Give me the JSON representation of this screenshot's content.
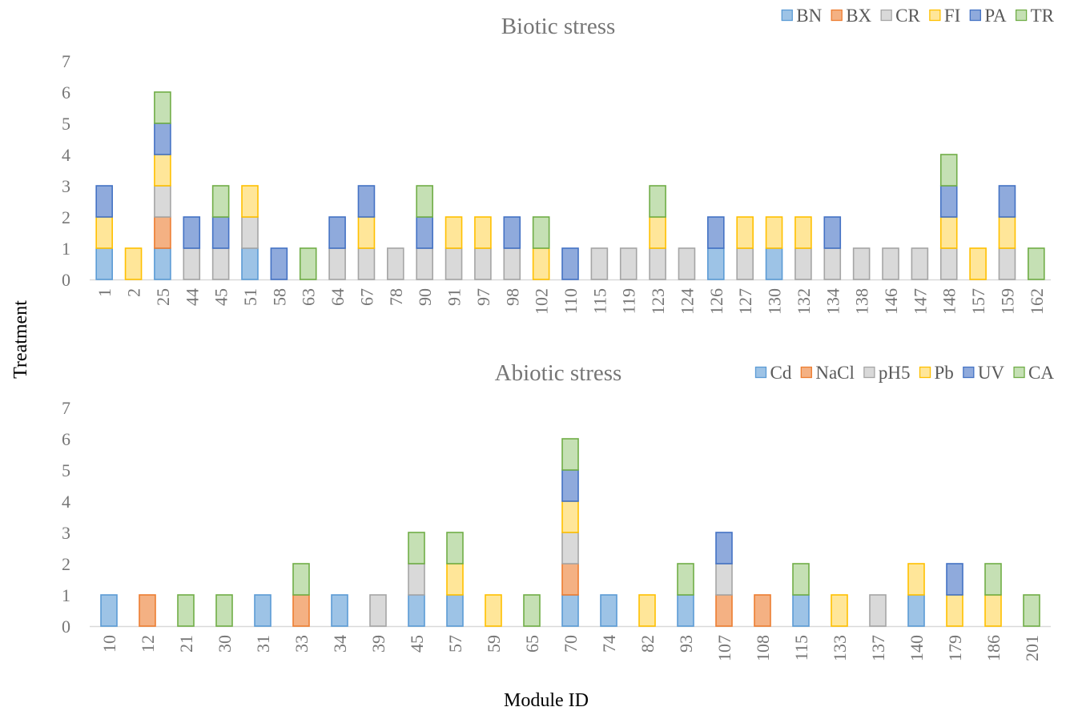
{
  "ylabel": "Treatment",
  "xlabel": "Module ID",
  "chart_data": [
    {
      "type": "bar",
      "stacked": true,
      "title": "Biotic stress",
      "xlabel": "Module ID",
      "ylabel": "Treatment",
      "ylim": [
        0,
        7
      ],
      "yticks": [
        0,
        1,
        2,
        3,
        4,
        5,
        6,
        7
      ],
      "grid": false,
      "legend_position": "top-right",
      "categories": [
        "1",
        "2",
        "25",
        "44",
        "45",
        "51",
        "58",
        "63",
        "64",
        "67",
        "78",
        "90",
        "91",
        "97",
        "98",
        "102",
        "110",
        "115",
        "119",
        "123",
        "124",
        "126",
        "127",
        "130",
        "132",
        "134",
        "138",
        "146",
        "147",
        "148",
        "157",
        "159",
        "162"
      ],
      "series": [
        {
          "name": "BN",
          "color": "#9DC3E6",
          "edge": "#5B9BD5",
          "values": [
            1,
            0,
            1,
            0,
            0,
            1,
            0,
            0,
            0,
            0,
            0,
            0,
            0,
            0,
            0,
            0,
            0,
            0,
            0,
            0,
            0,
            1,
            0,
            1,
            0,
            0,
            0,
            0,
            0,
            0,
            0,
            0,
            0
          ]
        },
        {
          "name": "BX",
          "color": "#F4B183",
          "edge": "#ED7D31",
          "values": [
            0,
            0,
            1,
            0,
            0,
            0,
            0,
            0,
            0,
            0,
            0,
            0,
            0,
            0,
            0,
            0,
            0,
            0,
            0,
            0,
            0,
            0,
            0,
            0,
            0,
            0,
            0,
            0,
            0,
            0,
            0,
            0,
            0
          ]
        },
        {
          "name": "CR",
          "color": "#D9D9D9",
          "edge": "#A5A5A5",
          "values": [
            0,
            0,
            1,
            1,
            1,
            1,
            0,
            0,
            1,
            1,
            1,
            1,
            1,
            1,
            1,
            0,
            0,
            1,
            1,
            1,
            1,
            0,
            1,
            0,
            1,
            1,
            1,
            1,
            1,
            1,
            0,
            1,
            0
          ]
        },
        {
          "name": "FI",
          "color": "#FFE699",
          "edge": "#FFC000",
          "values": [
            1,
            1,
            1,
            0,
            0,
            1,
            0,
            0,
            0,
            1,
            0,
            0,
            1,
            1,
            0,
            1,
            0,
            0,
            0,
            1,
            0,
            0,
            1,
            1,
            1,
            0,
            0,
            0,
            0,
            1,
            1,
            1,
            0
          ]
        },
        {
          "name": "PA",
          "color": "#8FAADC",
          "edge": "#4472C4",
          "values": [
            1,
            0,
            1,
            1,
            1,
            0,
            1,
            0,
            1,
            1,
            0,
            1,
            0,
            0,
            1,
            0,
            1,
            0,
            0,
            0,
            0,
            1,
            0,
            0,
            0,
            1,
            0,
            0,
            0,
            1,
            0,
            1,
            0
          ]
        },
        {
          "name": "TR",
          "color": "#C5E0B4",
          "edge": "#70AD47",
          "values": [
            0,
            0,
            1,
            0,
            1,
            0,
            0,
            1,
            0,
            0,
            0,
            1,
            0,
            0,
            0,
            1,
            0,
            0,
            0,
            1,
            0,
            0,
            0,
            0,
            0,
            0,
            0,
            0,
            0,
            1,
            0,
            0,
            1
          ]
        }
      ]
    },
    {
      "type": "bar",
      "stacked": true,
      "title": "Abiotic stress",
      "xlabel": "Module ID",
      "ylabel": "Treatment",
      "ylim": [
        0,
        7
      ],
      "yticks": [
        0,
        1,
        2,
        3,
        4,
        5,
        6,
        7
      ],
      "grid": false,
      "legend_position": "top-right",
      "categories": [
        "10",
        "12",
        "21",
        "30",
        "31",
        "33",
        "34",
        "39",
        "45",
        "57",
        "59",
        "65",
        "70",
        "74",
        "82",
        "93",
        "107",
        "108",
        "115",
        "133",
        "137",
        "140",
        "179",
        "186",
        "201"
      ],
      "series": [
        {
          "name": "Cd",
          "color": "#9DC3E6",
          "edge": "#5B9BD5",
          "values": [
            1,
            0,
            0,
            0,
            1,
            0,
            1,
            0,
            1,
            1,
            0,
            0,
            1,
            1,
            0,
            1,
            0,
            0,
            1,
            0,
            0,
            1,
            0,
            0,
            0
          ]
        },
        {
          "name": "NaCl",
          "color": "#F4B183",
          "edge": "#ED7D31",
          "values": [
            0,
            1,
            0,
            0,
            0,
            1,
            0,
            0,
            0,
            0,
            0,
            0,
            1,
            0,
            0,
            0,
            1,
            1,
            0,
            0,
            0,
            0,
            0,
            0,
            0
          ]
        },
        {
          "name": "pH5",
          "color": "#D9D9D9",
          "edge": "#A5A5A5",
          "values": [
            0,
            0,
            0,
            0,
            0,
            0,
            0,
            1,
            1,
            0,
            0,
            0,
            1,
            0,
            0,
            0,
            1,
            0,
            0,
            0,
            1,
            0,
            0,
            0,
            0
          ]
        },
        {
          "name": "Pb",
          "color": "#FFE699",
          "edge": "#FFC000",
          "values": [
            0,
            0,
            0,
            0,
            0,
            0,
            0,
            0,
            0,
            1,
            1,
            0,
            1,
            0,
            1,
            0,
            0,
            0,
            0,
            1,
            0,
            1,
            1,
            1,
            0
          ]
        },
        {
          "name": "UV",
          "color": "#8FAADC",
          "edge": "#4472C4",
          "values": [
            0,
            0,
            0,
            0,
            0,
            0,
            0,
            0,
            0,
            0,
            0,
            0,
            1,
            0,
            0,
            0,
            1,
            0,
            0,
            0,
            0,
            0,
            1,
            0,
            0
          ]
        },
        {
          "name": "CA",
          "color": "#C5E0B4",
          "edge": "#70AD47",
          "values": [
            0,
            0,
            1,
            1,
            0,
            1,
            0,
            0,
            1,
            1,
            0,
            1,
            1,
            0,
            0,
            1,
            0,
            0,
            1,
            0,
            0,
            0,
            0,
            1,
            1
          ]
        }
      ]
    }
  ]
}
